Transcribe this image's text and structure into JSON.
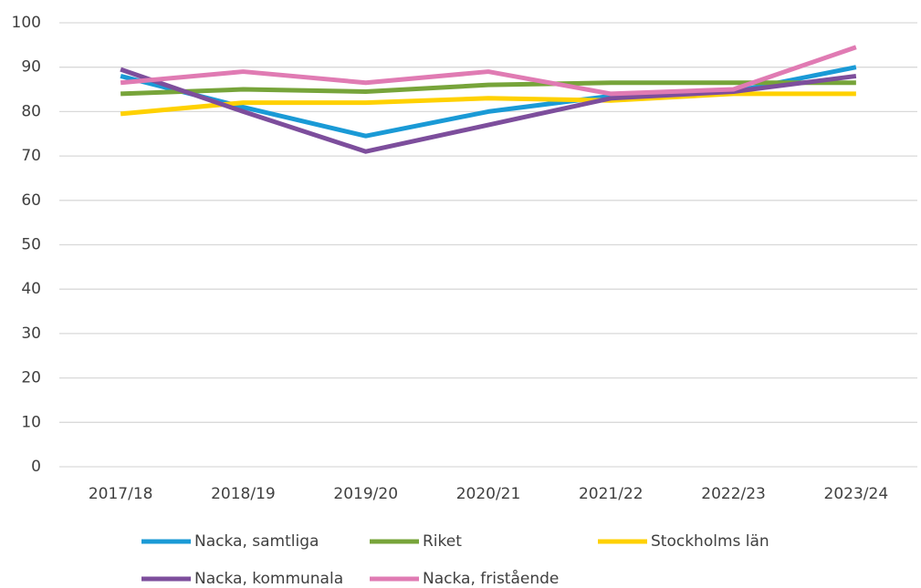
{
  "chart_data": {
    "type": "line",
    "categories": [
      "2017/18",
      "2018/19",
      "2019/20",
      "2020/21",
      "2021/22",
      "2022/23",
      "2023/24"
    ],
    "series": [
      {
        "name": "Nacka, samtliga",
        "color": "#1a9ad6",
        "values": [
          88,
          81,
          74.5,
          80,
          83.5,
          84.5,
          90
        ]
      },
      {
        "name": "Riket",
        "color": "#77a43a",
        "values": [
          84,
          85,
          84.5,
          86,
          86.5,
          86.5,
          86.5
        ]
      },
      {
        "name": "Stockholms län",
        "color": "#ffd100",
        "values": [
          79.5,
          82,
          82,
          83,
          82.5,
          84,
          84
        ]
      },
      {
        "name": "Nacka, kommunala",
        "color": "#7d4e9c",
        "values": [
          89.5,
          80,
          71,
          77,
          83,
          84.5,
          88
        ]
      },
      {
        "name": "Nacka, fristående",
        "color": "#e07bb3",
        "values": [
          86.5,
          89,
          86.5,
          89,
          84,
          85,
          94.5
        ]
      }
    ],
    "ylim": [
      0,
      100
    ],
    "yticks": [
      0,
      10,
      20,
      30,
      40,
      50,
      60,
      70,
      80,
      90,
      100
    ],
    "grid": true
  }
}
